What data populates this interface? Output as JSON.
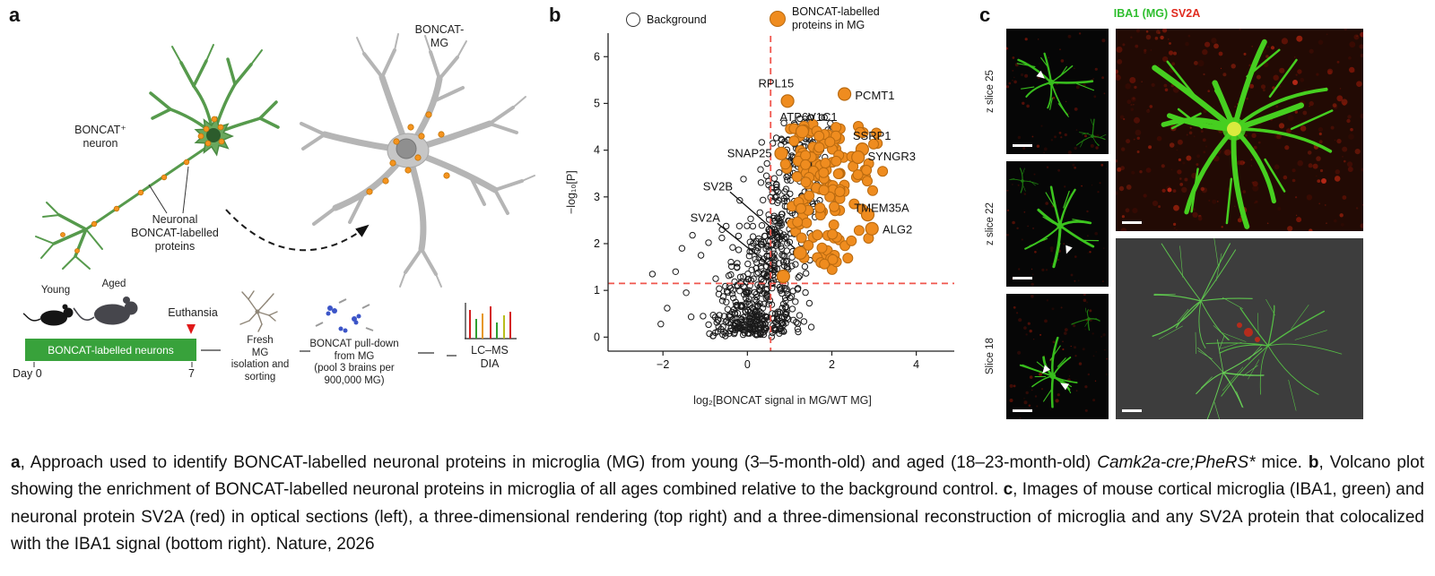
{
  "panels": {
    "a": {
      "label": "a",
      "mg_title": "BONCAT-\nMG",
      "neuron_label": "BONCAT⁺\nneuron",
      "proteins_label": "Neuronal\nBONCAT-labelled\nproteins",
      "young": "Young",
      "aged": "Aged",
      "euthanasia": "Euthansia",
      "timeline_box": "BONCAT-labelled neurons",
      "day_start": "Day 0",
      "day_end": "7",
      "step_isolation": "Fresh\nMG\nisolation and\nsorting",
      "step_pulldown": "BONCAT pull-down\nfrom MG\n(pool 3 brains per\n900,000 MG)",
      "step_lcms": "LC–MS\nDIA"
    },
    "b": {
      "label": "b"
    },
    "c": {
      "label": "c",
      "channel_green": "IBA1 (MG)",
      "channel_red": "SV2A",
      "slice_labels": [
        "z slice 25",
        "z slice 22",
        "Slice 18"
      ]
    }
  },
  "chart_data": {
    "type": "scatter",
    "subtype": "volcano",
    "title": "",
    "xlabel": "log₂[BONCAT signal in MG/WT MG]",
    "ylabel": "−log₁₀[P]",
    "xlim": [
      -3.3,
      4.9
    ],
    "ylim": [
      -0.3,
      6.35
    ],
    "xticks": [
      -2,
      0,
      2,
      4
    ],
    "yticks": [
      0,
      1,
      2,
      3,
      4,
      5,
      6
    ],
    "grid": false,
    "threshold_x": 0.55,
    "threshold_y": 1.15,
    "threshold_color": "#f0564d",
    "legend_position": "top",
    "legend": [
      {
        "label": "Background",
        "marker": "open"
      },
      {
        "label": "BONCAT-labelled\nproteins in MG",
        "marker": "filled",
        "color": "#ef8c1f"
      }
    ],
    "labeled_points": [
      {
        "name": "RPL15",
        "point": [
          0.95,
          5.05
        ],
        "label": [
          0.68,
          5.42
        ],
        "anchor": "middle",
        "leader": false
      },
      {
        "name": "PCMT1",
        "point": [
          2.3,
          5.2
        ],
        "label": [
          2.55,
          5.16
        ],
        "anchor": "start",
        "leader": false
      },
      {
        "name": "ATP6V1C1",
        "point": [
          1.3,
          4.4
        ],
        "label": [
          1.45,
          4.7
        ],
        "anchor": "middle",
        "leader": false
      },
      {
        "name": "SSRP1",
        "point": [
          2.72,
          4.02
        ],
        "label": [
          2.95,
          4.3
        ],
        "anchor": "middle",
        "leader": false
      },
      {
        "name": "SNAP25",
        "point": [
          0.8,
          3.93
        ],
        "label": [
          0.58,
          3.93
        ],
        "anchor": "end",
        "leader": false
      },
      {
        "name": "SYNGR3",
        "point": [
          2.62,
          3.85
        ],
        "label": [
          2.85,
          3.86
        ],
        "anchor": "start",
        "leader": false
      },
      {
        "name": "SV2B",
        "point": [
          1.25,
          1.8
        ],
        "label": [
          -0.7,
          3.22
        ],
        "anchor": "middle",
        "leader": true
      },
      {
        "name": "SV2A",
        "point": [
          0.85,
          1.3
        ],
        "label": [
          -1.0,
          2.55
        ],
        "anchor": "middle",
        "leader": true
      },
      {
        "name": "TMEM35A",
        "point": [
          2.85,
          2.62
        ],
        "label": [
          3.18,
          2.76
        ],
        "anchor": "middle",
        "leader": false
      },
      {
        "name": "ALG2",
        "point": [
          2.95,
          2.32
        ],
        "label": [
          3.2,
          2.3
        ],
        "anchor": "start",
        "leader": false
      }
    ],
    "clouds": {
      "background": {
        "seed": 7,
        "count": 640,
        "r": 3.2,
        "stroke": "#1b1b1b"
      },
      "enriched": {
        "seed": 11,
        "count": 150,
        "r": 5.5,
        "color": "#ef8c1f",
        "stroke": "#b96a10"
      },
      "background_outliers": [
        [
          -2.25,
          1.35
        ],
        [
          -1.9,
          0.62
        ],
        [
          -1.55,
          1.9
        ],
        [
          -1.3,
          2.18
        ],
        [
          -1.1,
          1.75
        ],
        [
          -0.92,
          2.02
        ],
        [
          -0.6,
          2.3
        ],
        [
          -0.35,
          1.92
        ],
        [
          -1.05,
          0.45
        ],
        [
          -1.45,
          0.95
        ],
        [
          -0.75,
          1.25
        ],
        [
          -2.05,
          0.28
        ],
        [
          -0.5,
          0.75
        ],
        [
          -0.25,
          1.5
        ],
        [
          -1.7,
          1.4
        ]
      ]
    }
  },
  "caption": {
    "segments": [
      {
        "text": "a",
        "bold": true
      },
      {
        "text": ", Approach used to identify BONCAT-labelled neuronal proteins in microglia (MG) from young (3–5-month-old) and aged (18–23-month-old) "
      },
      {
        "text": "Camk2a-cre;PheRS*",
        "italic": true
      },
      {
        "text": " mice. "
      },
      {
        "text": "b",
        "bold": true
      },
      {
        "text": ", Volcano plot showing the enrichment of BONCAT-labelled neuronal proteins in microglia of all ages combined relative to the background control. "
      },
      {
        "text": "c",
        "bold": true
      },
      {
        "text": ", Images of mouse cortical microglia (IBA1, green) and neuronal protein SV2A (red) in optical sections (left), a three-dimensional rendering (top right) and a three-dimensional reconstruction of microglia and any SV2A protein that colocalized with the IBA1 signal (bottom right). Nature, 2026"
      }
    ]
  },
  "colors": {
    "orange": "#ef8c1f",
    "threshold_red": "#f0564d",
    "iba1_green": "#2fbe2f",
    "sv2a_red": "#e02a1e",
    "neuron_green": "#569a4c",
    "microglia_gray": "#b5b5b5",
    "timeline_green": "#38a23b"
  }
}
